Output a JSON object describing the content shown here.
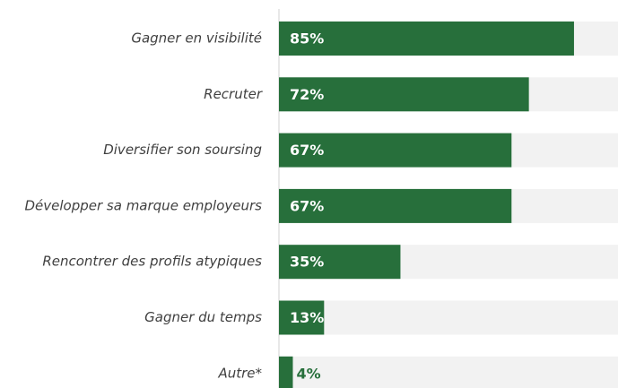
{
  "chart_data": {
    "type": "bar",
    "orientation": "horizontal",
    "categories": [
      "Gagner en visibilité",
      "Recruter",
      "Diversifier son soursing",
      "Développer sa marque employeurs",
      "Rencontrer des profils atypiques",
      "Gagner du temps",
      "Autre*"
    ],
    "values": [
      85,
      72,
      67,
      67,
      35,
      13,
      4
    ],
    "value_labels": [
      "85%",
      "72%",
      "67%",
      "67%",
      "35%",
      "13%",
      "4%"
    ],
    "color": "#276f3b",
    "track_color": "#f2f2f2",
    "xlim": [
      0,
      100
    ]
  }
}
